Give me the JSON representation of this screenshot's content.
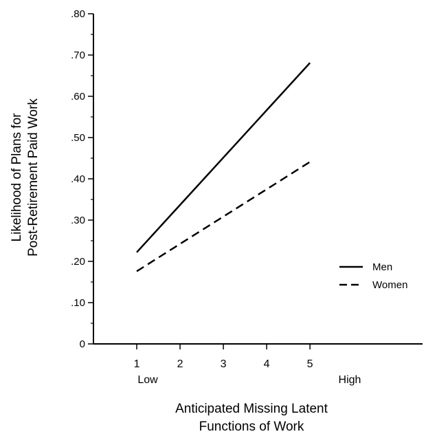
{
  "chart_data": {
    "type": "line",
    "title": "",
    "xlabel_lines": [
      "Anticipated Missing Latent",
      "Functions of Work"
    ],
    "ylabel_lines": [
      "Likelihood of Plans for",
      "Post-Retirement Paid Work"
    ],
    "x": [
      1,
      5
    ],
    "xlim": [
      0,
      7.6
    ],
    "x_ticks": [
      1,
      2,
      3,
      4,
      5
    ],
    "x_tick_labels": [
      "1",
      "2",
      "3",
      "4",
      "5"
    ],
    "x_end_labels": {
      "low": "Low",
      "high": "High"
    },
    "ylim": [
      0,
      0.8
    ],
    "y_ticks": [
      0,
      0.1,
      0.2,
      0.3,
      0.4,
      0.5,
      0.6,
      0.7,
      0.8
    ],
    "y_tick_labels": [
      "0",
      ".10",
      ".20",
      ".30",
      ".40",
      ".50",
      ".60",
      ".70",
      ".80"
    ],
    "y_minor_step": 0.05,
    "grid": false,
    "legend_position": "right",
    "series": [
      {
        "name": "Men",
        "values": [
          0.222,
          0.681
        ],
        "style": "solid",
        "color": "#000000"
      },
      {
        "name": "Women",
        "values": [
          0.176,
          0.441
        ],
        "style": "dashed",
        "color": "#000000"
      }
    ]
  }
}
